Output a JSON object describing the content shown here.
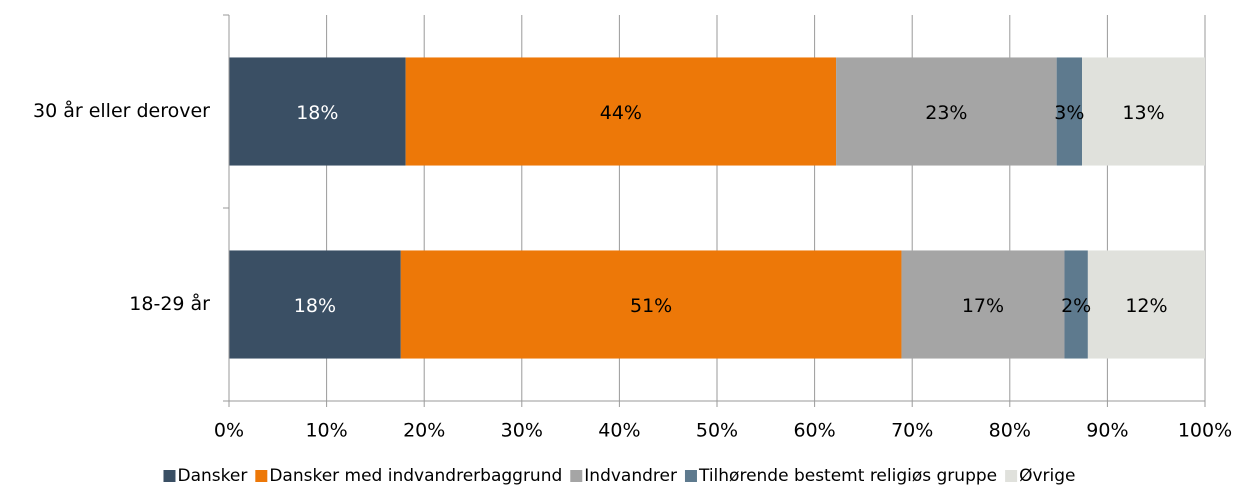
{
  "chart_data": {
    "type": "stacked-bar-horizontal",
    "categories": [
      "30 år eller derover",
      "18-29 år"
    ],
    "series": [
      {
        "name": "Dansker",
        "color": "#3a4f64",
        "values": [
          18.1,
          17.6
        ],
        "value_labels": [
          "18%",
          "18%"
        ]
      },
      {
        "name": "Dansker med indvandrerbaggrund",
        "color": "#ed7808",
        "values": [
          44.1,
          51.3
        ],
        "value_labels": [
          "44%",
          "51%"
        ]
      },
      {
        "name": "Indvandrer",
        "color": "#a5a5a5",
        "values": [
          22.6,
          16.7
        ],
        "value_labels": [
          "23%",
          "17%"
        ]
      },
      {
        "name": "Tilhørende bestemt religiøs gruppe",
        "color": "#5e7a8e",
        "values": [
          2.6,
          2.4
        ],
        "value_labels": [
          "3%",
          "2%"
        ]
      },
      {
        "name": "Øvrige",
        "color": "#e0e1dc",
        "values": [
          12.6,
          12.0
        ],
        "value_labels": [
          "13%",
          "12%"
        ]
      }
    ],
    "xlim": [
      0,
      100
    ],
    "xticks": [
      {
        "value": 0,
        "label": "0%"
      },
      {
        "value": 10,
        "label": "10%"
      },
      {
        "value": 20,
        "label": "20%"
      },
      {
        "value": 30,
        "label": "30%"
      },
      {
        "value": 40,
        "label": "40%"
      },
      {
        "value": 50,
        "label": "50%"
      },
      {
        "value": 60,
        "label": "60%"
      },
      {
        "value": 70,
        "label": "70%"
      },
      {
        "value": 80,
        "label": "80%"
      },
      {
        "value": 90,
        "label": "90%"
      },
      {
        "value": 100,
        "label": "100%"
      }
    ],
    "grid": true,
    "legend": "bottom"
  }
}
